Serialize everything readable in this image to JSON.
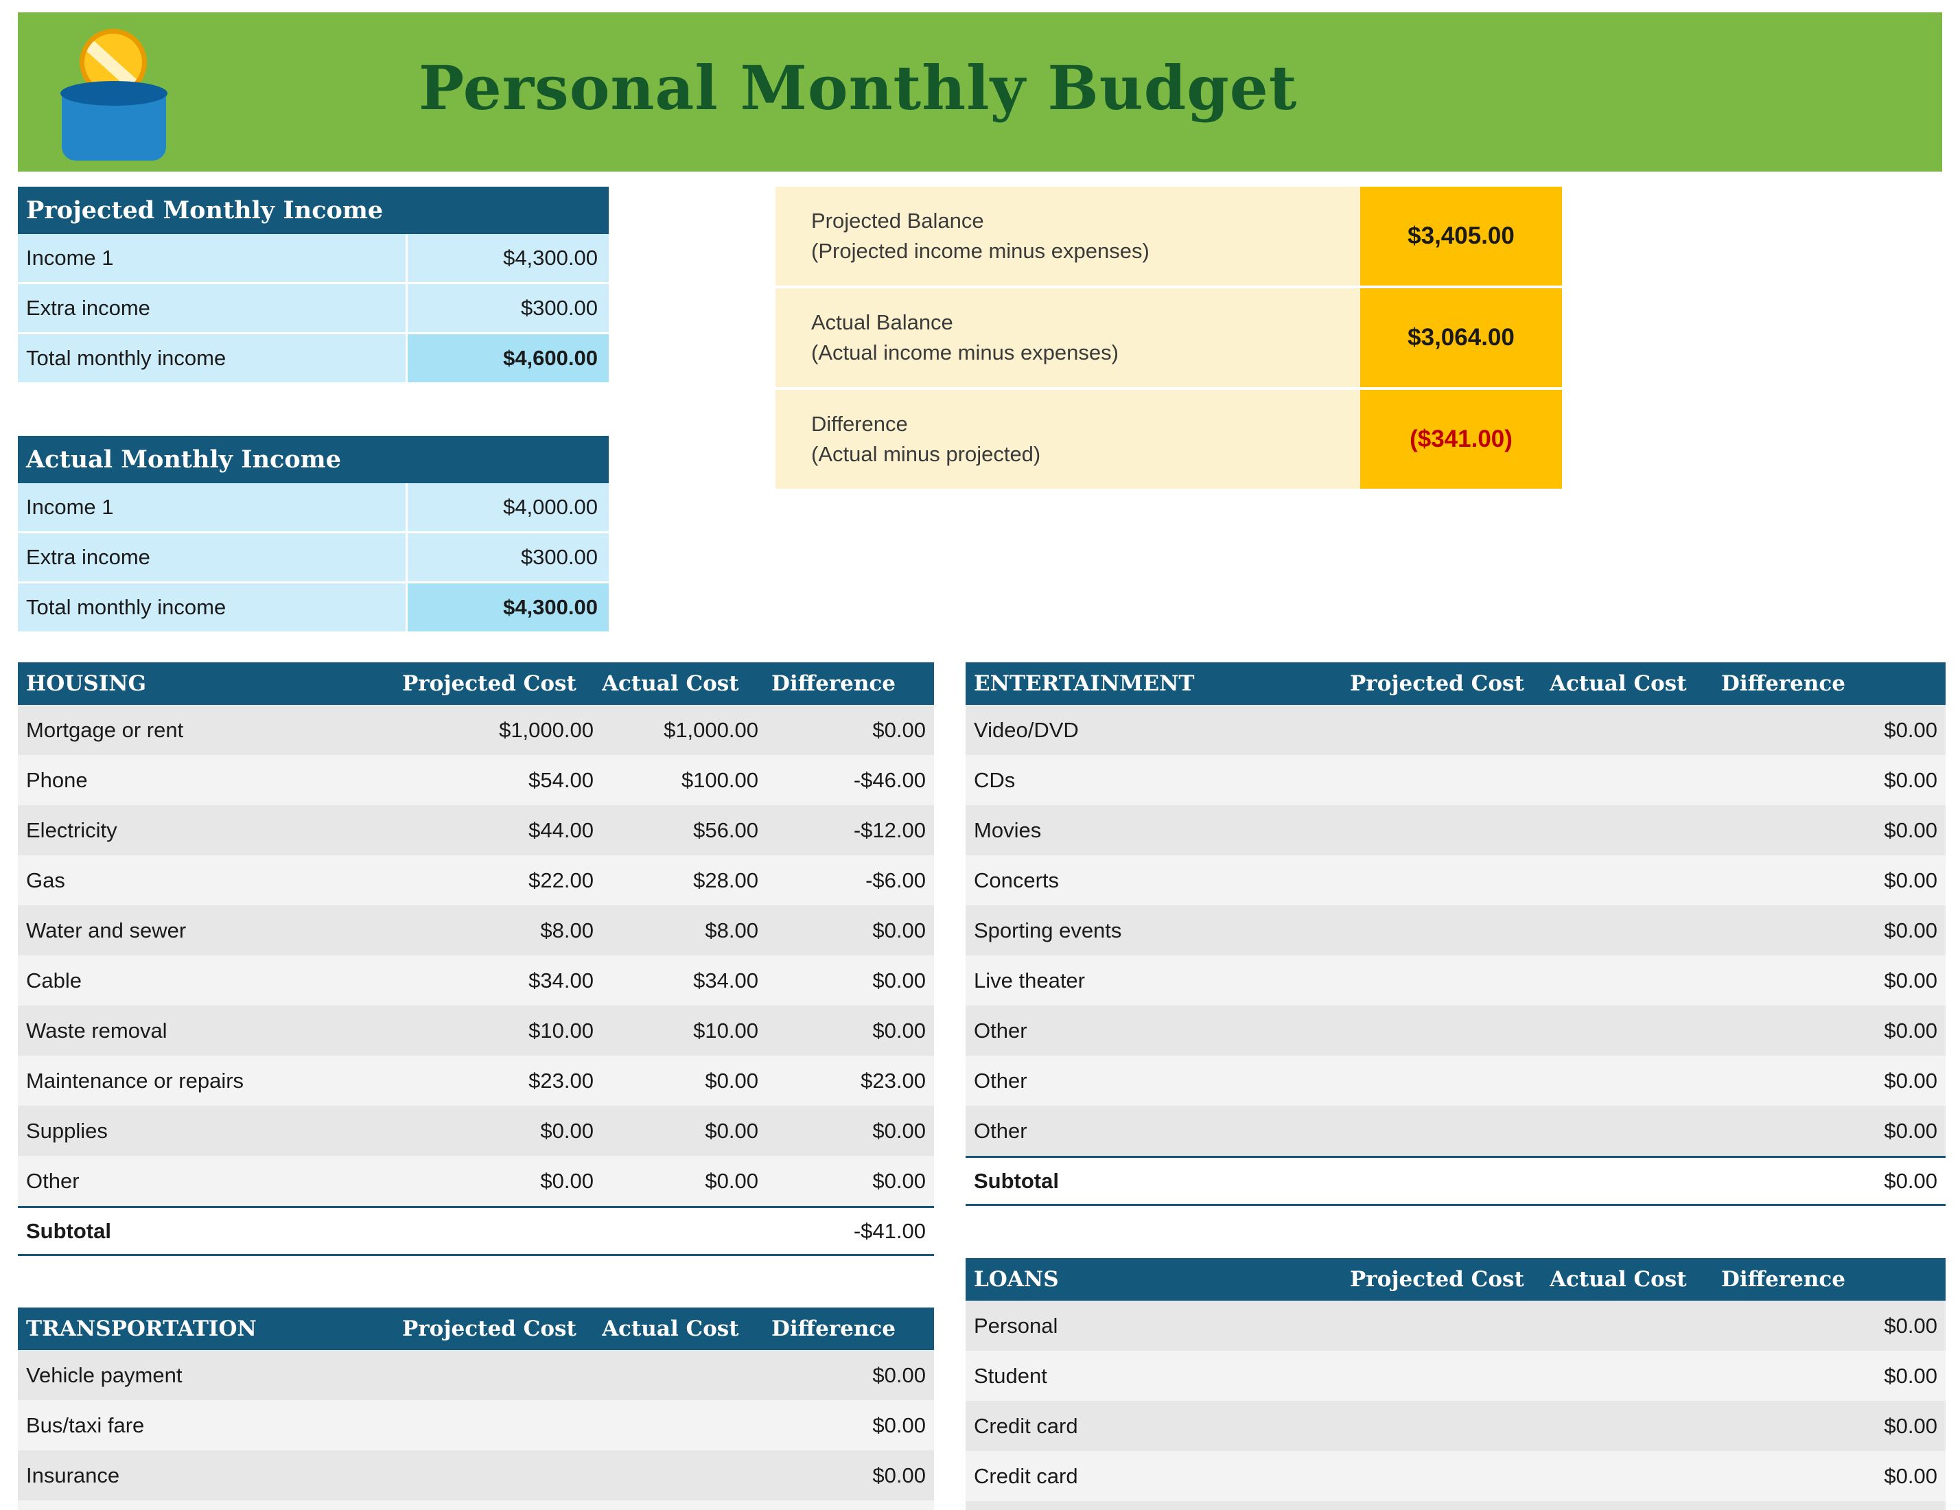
{
  "header": {
    "title": "Personal Monthly Budget"
  },
  "colors": {
    "banner_green": "#7BB944",
    "title_green": "#15592B",
    "header_blue": "#14587C",
    "light_blue_row": "#CDEDFA",
    "total_blue": "#A6E1F5",
    "cream": "#FDF2CF",
    "amber": "#FFC000",
    "negative_red": "#C00000",
    "row_gray": "#E7E7E7",
    "row_light": "#F3F3F3"
  },
  "income_projected": {
    "title": "Projected Monthly Income",
    "rows": [
      {
        "label": "Income 1",
        "value": "$4,300.00"
      },
      {
        "label": "Extra income",
        "value": "$300.00"
      }
    ],
    "total": {
      "label": "Total monthly income",
      "value": "$4,600.00"
    }
  },
  "income_actual": {
    "title": "Actual Monthly Income",
    "rows": [
      {
        "label": "Income 1",
        "value": "$4,000.00"
      },
      {
        "label": "Extra income",
        "value": "$300.00"
      }
    ],
    "total": {
      "label": "Total monthly income",
      "value": "$4,300.00"
    }
  },
  "balance": {
    "rows": [
      {
        "label": "Projected Balance",
        "sublabel": "(Projected income minus expenses)",
        "value": "$3,405.00",
        "negative": false
      },
      {
        "label": "Actual Balance",
        "sublabel": "(Actual income minus expenses)",
        "value": "$3,064.00",
        "negative": false
      },
      {
        "label": "Difference",
        "sublabel": "(Actual minus projected)",
        "value": "($341.00)",
        "negative": true
      }
    ]
  },
  "columns": {
    "projected": "Projected Cost",
    "actual": "Actual Cost",
    "difference": "Difference"
  },
  "tables": {
    "housing": {
      "title": "HOUSING",
      "rows": [
        {
          "label": "Mortgage or rent",
          "proj": "$1,000.00",
          "actual": "$1,000.00",
          "diff": "$0.00"
        },
        {
          "label": "Phone",
          "proj": "$54.00",
          "actual": "$100.00",
          "diff": "-$46.00"
        },
        {
          "label": "Electricity",
          "proj": "$44.00",
          "actual": "$56.00",
          "diff": "-$12.00"
        },
        {
          "label": "Gas",
          "proj": "$22.00",
          "actual": "$28.00",
          "diff": "-$6.00"
        },
        {
          "label": "Water and sewer",
          "proj": "$8.00",
          "actual": "$8.00",
          "diff": "$0.00"
        },
        {
          "label": "Cable",
          "proj": "$34.00",
          "actual": "$34.00",
          "diff": "$0.00"
        },
        {
          "label": "Waste removal",
          "proj": "$10.00",
          "actual": "$10.00",
          "diff": "$0.00"
        },
        {
          "label": "Maintenance or repairs",
          "proj": "$23.00",
          "actual": "$0.00",
          "diff": "$23.00"
        },
        {
          "label": "Supplies",
          "proj": "$0.00",
          "actual": "$0.00",
          "diff": "$0.00"
        },
        {
          "label": "Other",
          "proj": "$0.00",
          "actual": "$0.00",
          "diff": "$0.00"
        }
      ],
      "subtotal": {
        "label": "Subtotal",
        "value": "-$41.00"
      }
    },
    "entertainment": {
      "title": "ENTERTAINMENT",
      "rows": [
        {
          "label": "Video/DVD",
          "proj": "",
          "actual": "",
          "diff": "$0.00"
        },
        {
          "label": "CDs",
          "proj": "",
          "actual": "",
          "diff": "$0.00"
        },
        {
          "label": "Movies",
          "proj": "",
          "actual": "",
          "diff": "$0.00"
        },
        {
          "label": "Concerts",
          "proj": "",
          "actual": "",
          "diff": "$0.00"
        },
        {
          "label": "Sporting events",
          "proj": "",
          "actual": "",
          "diff": "$0.00"
        },
        {
          "label": "Live theater",
          "proj": "",
          "actual": "",
          "diff": "$0.00"
        },
        {
          "label": "Other",
          "proj": "",
          "actual": "",
          "diff": "$0.00"
        },
        {
          "label": "Other",
          "proj": "",
          "actual": "",
          "diff": "$0.00"
        },
        {
          "label": "Other",
          "proj": "",
          "actual": "",
          "diff": "$0.00"
        }
      ],
      "subtotal": {
        "label": "Subtotal",
        "value": "$0.00"
      }
    },
    "transportation": {
      "title": "TRANSPORTATION",
      "rows": [
        {
          "label": "Vehicle payment",
          "proj": "",
          "actual": "",
          "diff": "$0.00"
        },
        {
          "label": "Bus/taxi fare",
          "proj": "",
          "actual": "",
          "diff": "$0.00"
        },
        {
          "label": "Insurance",
          "proj": "",
          "actual": "",
          "diff": "$0.00"
        }
      ]
    },
    "loans": {
      "title": "LOANS",
      "rows": [
        {
          "label": "Personal",
          "proj": "",
          "actual": "",
          "diff": "$0.00"
        },
        {
          "label": "Student",
          "proj": "",
          "actual": "",
          "diff": "$0.00"
        },
        {
          "label": "Credit card",
          "proj": "",
          "actual": "",
          "diff": "$0.00"
        },
        {
          "label": "Credit card",
          "proj": "",
          "actual": "",
          "diff": "$0.00"
        }
      ]
    }
  }
}
